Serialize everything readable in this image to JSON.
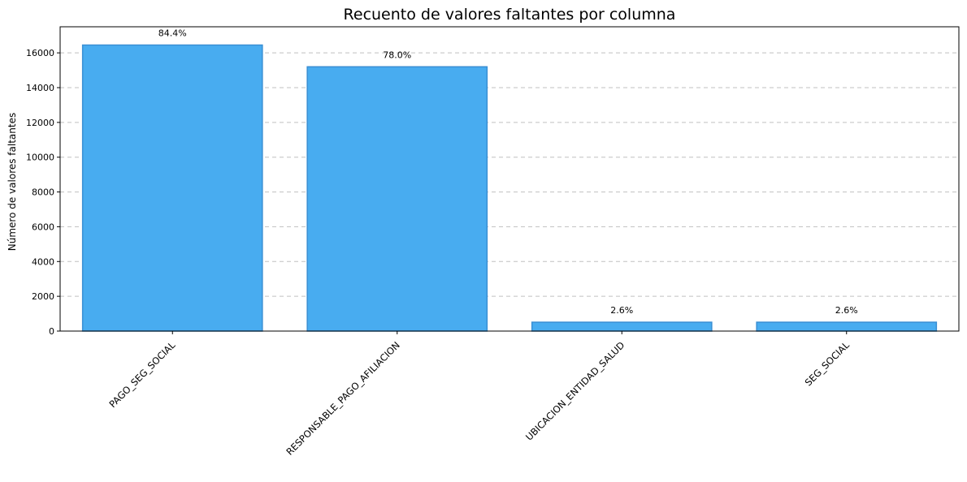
{
  "chart_data": {
    "type": "bar",
    "title": "Recuento de valores faltantes por columna",
    "xlabel": "",
    "ylabel": "Número de valores faltantes",
    "categories": [
      "PAGO_SEG_SOCIAL",
      "RESPONSABLE_PAGO_AFILIACION",
      "UBICACION_ENTIDAD_SALUD",
      "SEG_SOCIAL"
    ],
    "values": [
      16450,
      15200,
      510,
      510
    ],
    "data_labels": [
      "84.4%",
      "78.0%",
      "2.6%",
      "2.6%"
    ],
    "ylim": [
      0,
      17500
    ],
    "yticks": [
      0,
      2000,
      4000,
      6000,
      8000,
      10000,
      12000,
      14000,
      16000
    ],
    "grid": "y, dashed",
    "bar_color": "#48acf0",
    "bar_edge_color": "#3a8fd4"
  }
}
